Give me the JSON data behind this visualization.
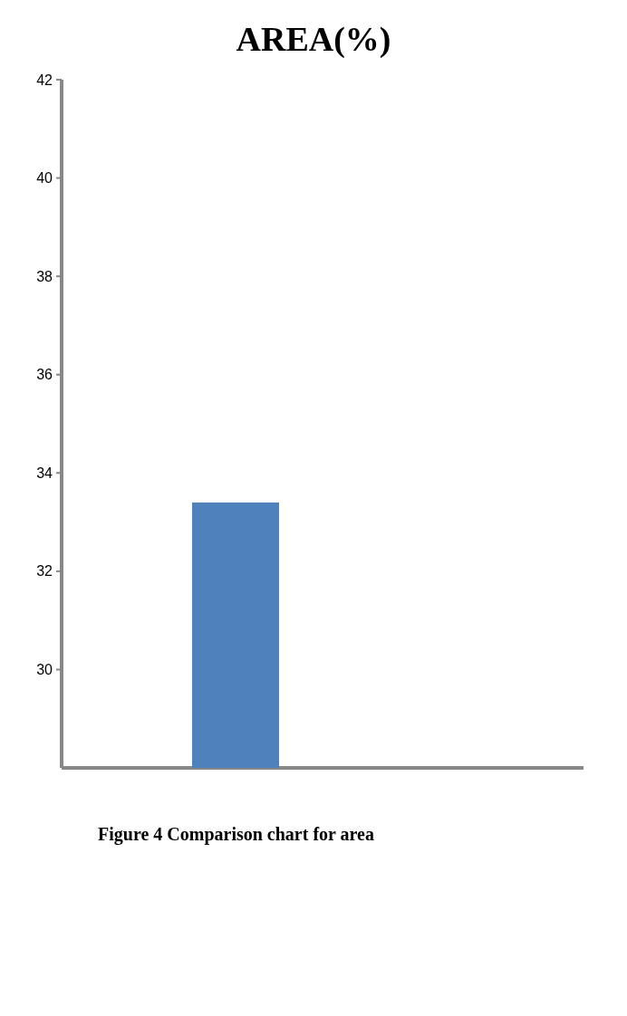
{
  "chart_data": {
    "type": "bar",
    "title": "AREA(%)",
    "categories": [
      null
    ],
    "values": [
      33.4
    ],
    "color": "#4f81bd",
    "ylim": [
      28,
      42
    ],
    "yticks": [
      30,
      32,
      34,
      36,
      38,
      40,
      42
    ],
    "grid": false,
    "annotations": [
      "Figure 4 Comparison chart for area"
    ]
  }
}
